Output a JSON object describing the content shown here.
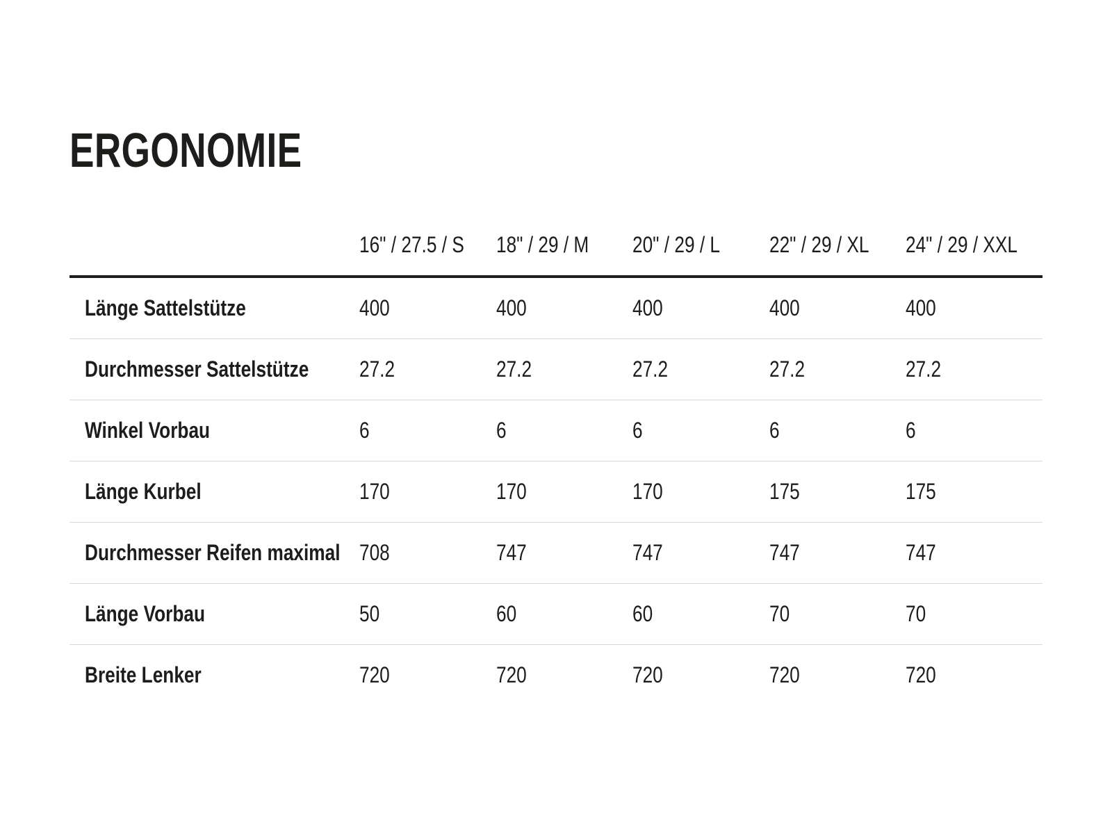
{
  "page": {
    "title": "ERGONOMIE"
  },
  "table": {
    "columns": [
      "16\" / 27.5 / S",
      "18\" / 29 / M",
      "20\" / 29 / L",
      "22\" / 29 / XL",
      "24\" / 29 / XXL"
    ],
    "rows": [
      {
        "label": "Länge Sattelstütze",
        "values": [
          "400",
          "400",
          "400",
          "400",
          "400"
        ]
      },
      {
        "label": "Durchmesser Sattelstütze",
        "values": [
          "27.2",
          "27.2",
          "27.2",
          "27.2",
          "27.2"
        ]
      },
      {
        "label": "Winkel Vorbau",
        "values": [
          "6",
          "6",
          "6",
          "6",
          "6"
        ]
      },
      {
        "label": "Länge Kurbel",
        "values": [
          "170",
          "170",
          "170",
          "175",
          "175"
        ]
      },
      {
        "label": "Durchmesser Reifen maximal",
        "values": [
          "708",
          "747",
          "747",
          "747",
          "747"
        ]
      },
      {
        "label": "Länge Vorbau",
        "values": [
          "50",
          "60",
          "60",
          "70",
          "70"
        ]
      },
      {
        "label": "Breite Lenker",
        "values": [
          "720",
          "720",
          "720",
          "720",
          "720"
        ]
      }
    ],
    "colors": {
      "text": "#1d1d1b",
      "header_rule": "#1d1d1b",
      "row_divider": "#d8d8d8",
      "background": "#ffffff"
    }
  }
}
